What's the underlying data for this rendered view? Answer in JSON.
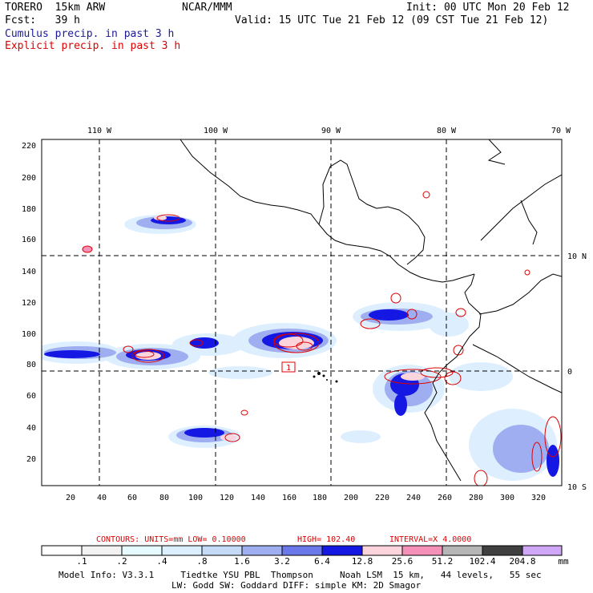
{
  "header": {
    "model": "TORERO  15km ARW",
    "org": "NCAR/MMM",
    "init": "Init: 00 UTC Mon 20 Feb 12",
    "fcst": "Fcst:   39 h",
    "valid": "Valid: 15 UTC Tue 21 Feb 12 (09 CST Tue 21 Feb 12)",
    "field1": "Cumulus precip. in past 3 h",
    "field2": "Explicit precip. in past 3 h",
    "colors": {
      "field1": "#1a1a99",
      "field2": "#dd0000"
    }
  },
  "map": {
    "top_labels": [
      "110 W",
      "100 W",
      "90 W",
      "80 W",
      "70 W"
    ],
    "right_labels": [
      "10 N",
      "0",
      "10 S"
    ],
    "x_ticks": [
      "20",
      "40",
      "60",
      "80",
      "100",
      "120",
      "140",
      "160",
      "180",
      "200",
      "220",
      "240",
      "260",
      "280",
      "300",
      "320"
    ],
    "y_ticks": [
      "220",
      "200",
      "180",
      "160",
      "140",
      "120",
      "100",
      "80",
      "60",
      "40",
      "20"
    ],
    "hilo_label": "1"
  },
  "contours": {
    "units": "CONTOURS:  UNITS=mm  LOW= 0.10000",
    "high": "HIGH=  102.40",
    "interval": "INTERVAL=X  4.0000"
  },
  "colorbar": {
    "labels": [
      ".1",
      ".2",
      ".4",
      ".8",
      "1.6",
      "3.2",
      "6.4",
      "12.8",
      "25.6",
      "51.2",
      "102.4",
      "204.8"
    ],
    "unit": "mm",
    "colors": [
      "#ffffff",
      "#f2f2f2",
      "#e6fbff",
      "#dcefff",
      "#c4daf7",
      "#9eaef0",
      "#6a78ea",
      "#1418e2",
      "#fcd4dc",
      "#f590b8",
      "#b6b6b6",
      "#404040",
      "#d0a6f7"
    ]
  },
  "footer": {
    "line1": "Model Info: V3.3.1     Tiedtke YSU PBL  Thompson     Noah LSM  15 km,   44 levels,   55 sec",
    "line2": "LW: Godd SW: Goddard DIFF: simple KM: 2D Smagor"
  }
}
